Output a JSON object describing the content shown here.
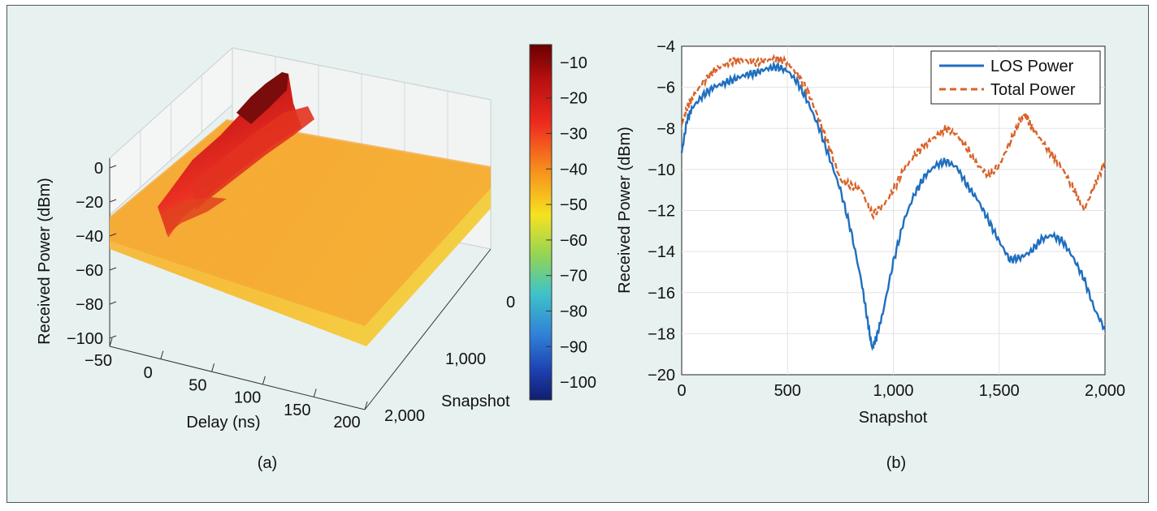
{
  "chart_data": [
    {
      "panel_label": "(a)",
      "type": "surface3d",
      "zlabel": "Received Power (dBm)",
      "xlabel": "Delay (ns)",
      "ylabel": "Snapshot",
      "x_ticks": [
        "−50",
        "0",
        "50",
        "100",
        "150",
        "200"
      ],
      "y_ticks": [
        "0",
        "1,000",
        "2,000"
      ],
      "z_ticks": [
        "0",
        "−20",
        "−40",
        "−60",
        "−80",
        "−100"
      ],
      "xlim": [
        -50,
        200
      ],
      "ylim": [
        0,
        2000
      ],
      "zlim": [
        -100,
        0
      ],
      "colorbar": {
        "range": [
          -105,
          -5
        ],
        "ticks": [
          "−10",
          "−20",
          "−30",
          "−40",
          "−50",
          "−60",
          "−70",
          "−80",
          "−90",
          "−100"
        ],
        "colormap": "jet"
      },
      "grid": true
    },
    {
      "panel_label": "(b)",
      "type": "line",
      "xlabel": "Snapshot",
      "ylabel": "Received Power (dBm)",
      "xlim": [
        0,
        2000
      ],
      "ylim": [
        -20,
        -4
      ],
      "x_ticks": [
        "0",
        "500",
        "1,000",
        "1,500",
        "2,000"
      ],
      "y_ticks": [
        "−4",
        "−6",
        "−8",
        "−10",
        "−12",
        "−14",
        "−16",
        "−18",
        "−20"
      ],
      "grid": true,
      "legend_position": "top-right",
      "series": [
        {
          "name": "LOS Power",
          "color": "#1f6fbf",
          "style": "solid",
          "points": [
            [
              0,
              -9.2
            ],
            [
              25,
              -7.6
            ],
            [
              50,
              -7.0
            ],
            [
              100,
              -6.4
            ],
            [
              150,
              -6.0
            ],
            [
              200,
              -5.8
            ],
            [
              250,
              -5.6
            ],
            [
              300,
              -5.4
            ],
            [
              350,
              -5.3
            ],
            [
              400,
              -5.1
            ],
            [
              450,
              -5.0
            ],
            [
              500,
              -5.2
            ],
            [
              550,
              -5.8
            ],
            [
              600,
              -6.8
            ],
            [
              650,
              -8.0
            ],
            [
              700,
              -9.5
            ],
            [
              750,
              -11.0
            ],
            [
              800,
              -13.0
            ],
            [
              850,
              -15.5
            ],
            [
              880,
              -17.5
            ],
            [
              900,
              -18.7
            ],
            [
              920,
              -18.2
            ],
            [
              950,
              -17.0
            ],
            [
              1000,
              -14.5
            ],
            [
              1050,
              -12.5
            ],
            [
              1100,
              -11.2
            ],
            [
              1150,
              -10.3
            ],
            [
              1200,
              -9.8
            ],
            [
              1250,
              -9.6
            ],
            [
              1300,
              -9.9
            ],
            [
              1350,
              -10.8
            ],
            [
              1400,
              -11.5
            ],
            [
              1450,
              -12.5
            ],
            [
              1500,
              -13.5
            ],
            [
              1550,
              -14.4
            ],
            [
              1600,
              -14.3
            ],
            [
              1650,
              -14.0
            ],
            [
              1700,
              -13.4
            ],
            [
              1750,
              -13.2
            ],
            [
              1800,
              -13.5
            ],
            [
              1850,
              -14.3
            ],
            [
              1900,
              -15.3
            ],
            [
              1950,
              -16.8
            ],
            [
              2000,
              -17.8
            ]
          ]
        },
        {
          "name": "Total Power",
          "color": "#d8632a",
          "style": "dashed",
          "points": [
            [
              0,
              -7.8
            ],
            [
              25,
              -7.0
            ],
            [
              50,
              -6.5
            ],
            [
              100,
              -5.8
            ],
            [
              150,
              -5.2
            ],
            [
              200,
              -4.9
            ],
            [
              250,
              -4.7
            ],
            [
              300,
              -4.7
            ],
            [
              350,
              -4.8
            ],
            [
              400,
              -4.7
            ],
            [
              450,
              -4.6
            ],
            [
              500,
              -4.8
            ],
            [
              550,
              -5.4
            ],
            [
              600,
              -6.3
            ],
            [
              650,
              -7.6
            ],
            [
              700,
              -9.0
            ],
            [
              750,
              -10.5
            ],
            [
              800,
              -10.8
            ],
            [
              850,
              -11.0
            ],
            [
              900,
              -12.2
            ],
            [
              950,
              -11.8
            ],
            [
              1000,
              -11.0
            ],
            [
              1050,
              -10.0
            ],
            [
              1100,
              -9.3
            ],
            [
              1150,
              -8.8
            ],
            [
              1200,
              -8.4
            ],
            [
              1250,
              -8.0
            ],
            [
              1300,
              -8.3
            ],
            [
              1350,
              -9.0
            ],
            [
              1400,
              -9.8
            ],
            [
              1450,
              -10.3
            ],
            [
              1500,
              -9.8
            ],
            [
              1550,
              -8.7
            ],
            [
              1600,
              -7.6
            ],
            [
              1625,
              -7.3
            ],
            [
              1650,
              -7.9
            ],
            [
              1700,
              -8.6
            ],
            [
              1750,
              -9.3
            ],
            [
              1800,
              -10.0
            ],
            [
              1850,
              -10.9
            ],
            [
              1900,
              -12.0
            ],
            [
              1950,
              -10.8
            ],
            [
              2000,
              -9.6
            ]
          ]
        }
      ]
    }
  ]
}
